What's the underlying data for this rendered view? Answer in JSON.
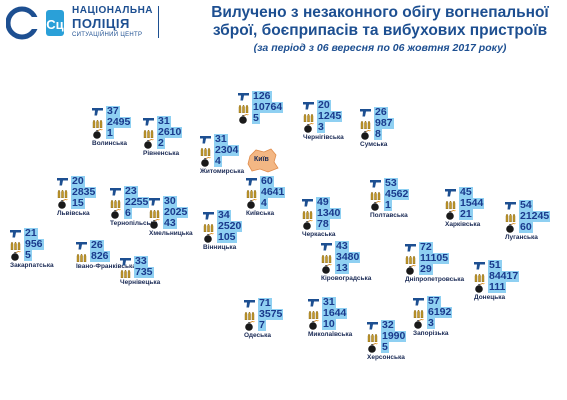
{
  "header": {
    "logo_line1": "НАЦІОНАЛЬНА",
    "logo_line2": "ПОЛІЦІЯ",
    "logo_line3": "СИТУАЦІЙНИЙ ЦЕНТР",
    "logo_mark": "Сц",
    "title_line1": "Вилучено з незаконного обігу вогнепальної",
    "title_line2": "зброї, боєприпасів та вибухових пристроїв",
    "subtitle": "(за період з 06 вересня по 06 жовтня 2017 року)"
  },
  "icons": {
    "firearm": "pistol-icon",
    "ammo": "ammo-icon",
    "explosive": "bomb-icon"
  },
  "colors": {
    "value_bg": "#8fd0f2",
    "value_text": "#1a3a8c",
    "icon": "#1d4f91",
    "kyiv_blob": "#f3b784"
  },
  "map_center_label": "Київ",
  "regions": [
    {
      "name": "Волинська",
      "firearms": "37",
      "ammo": "2495",
      "explosives": "1"
    },
    {
      "name": "Рівненська",
      "firearms": "31",
      "ammo": "2610",
      "explosives": "2"
    },
    {
      "name": "Житомирська",
      "firearms": "31",
      "ammo": "2304",
      "explosives": "4"
    },
    {
      "name": "",
      "firearms": "126",
      "ammo": "10764",
      "explosives": "5"
    },
    {
      "name": "Чернігівська",
      "firearms": "20",
      "ammo": "1245",
      "explosives": "3"
    },
    {
      "name": "Сумська",
      "firearms": "26",
      "ammo": "987",
      "explosives": "8"
    },
    {
      "name": "Київська",
      "firearms": "60",
      "ammo": "4641",
      "explosives": "4"
    },
    {
      "name": "Полтавська",
      "firearms": "53",
      "ammo": "4562",
      "explosives": "1"
    },
    {
      "name": "Харківська",
      "firearms": "45",
      "ammo": "1544",
      "explosives": "21"
    },
    {
      "name": "Луганська",
      "firearms": "54",
      "ammo": "21245",
      "explosives": "60"
    },
    {
      "name": "Львівська",
      "firearms": "20",
      "ammo": "2835",
      "explosives": "15"
    },
    {
      "name": "Тернопільська",
      "firearms": "23",
      "ammo": "2255",
      "explosives": "6"
    },
    {
      "name": "Хмельницька",
      "firearms": "30",
      "ammo": "2025",
      "explosives": "43"
    },
    {
      "name": "Вінницька",
      "firearms": "34",
      "ammo": "2520",
      "explosives": "105"
    },
    {
      "name": "Черкаська",
      "firearms": "49",
      "ammo": "1340",
      "explosives": "78"
    },
    {
      "name": "Закарпатська",
      "firearms": "21",
      "ammo": "956",
      "explosives": "5"
    },
    {
      "name": "Івано-Франківська",
      "firearms": "26",
      "ammo": "826",
      "explosives": ""
    },
    {
      "name": "Чернівецька",
      "firearms": "33",
      "ammo": "735",
      "explosives": ""
    },
    {
      "name": "Кіровоградська",
      "firearms": "43",
      "ammo": "3480",
      "explosives": "13"
    },
    {
      "name": "Дніпропетровська",
      "firearms": "72",
      "ammo": "11105",
      "explosives": "29"
    },
    {
      "name": "Донецька",
      "firearms": "51",
      "ammo": "84417",
      "explosives": "111"
    },
    {
      "name": "Одеська",
      "firearms": "71",
      "ammo": "3575",
      "explosives": "7"
    },
    {
      "name": "Миколаївська",
      "firearms": "31",
      "ammo": "1644",
      "explosives": "10"
    },
    {
      "name": "Запорізька",
      "firearms": "57",
      "ammo": "6192",
      "explosives": "3"
    },
    {
      "name": "Херсонська",
      "firearms": "32",
      "ammo": "1990",
      "explosives": "5"
    }
  ]
}
